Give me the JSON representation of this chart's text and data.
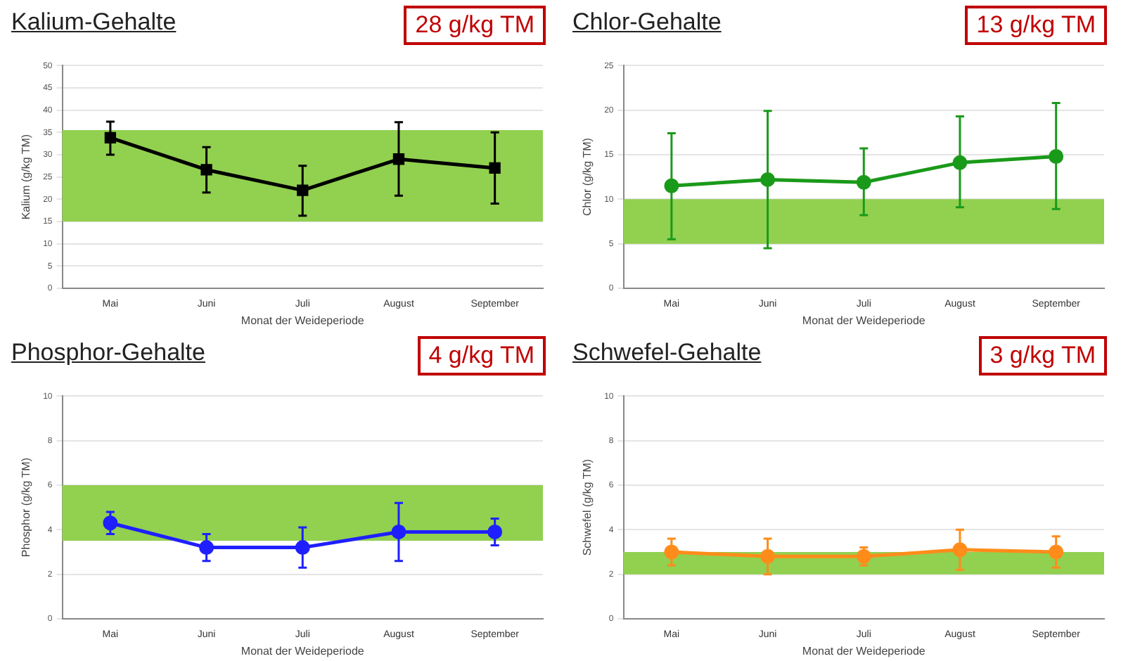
{
  "chart_data": [
    {
      "type": "line",
      "title": "Kalium-Gehalte",
      "annotations": [
        "28 g/kg TM"
      ],
      "xlabel": "Monat der Weideperiode",
      "ylabel": "Kalium (g/kg TM)",
      "categories": [
        "Mai",
        "Juni",
        "Juli",
        "August",
        "September"
      ],
      "series": [
        {
          "color": "#000000",
          "values": [
            33.8,
            26.6,
            22,
            29,
            27
          ],
          "errors": [
            [
              30,
              37.4
            ],
            [
              21.5,
              31.7
            ],
            [
              16.3,
              27.5
            ],
            [
              20.8,
              37.3
            ],
            [
              19,
              35
            ]
          ]
        }
      ],
      "ylim": [
        0,
        50
      ],
      "yticks": [
        0,
        5,
        10,
        15,
        20,
        25,
        30,
        35,
        40,
        45,
        50
      ],
      "grid": "y",
      "marker": "square",
      "bands": [
        {
          "axis": "y",
          "from": 15,
          "to": 35.5,
          "color": "#92d050"
        }
      ]
    },
    {
      "type": "line",
      "title": "Chlor-Gehalte",
      "annotations": [
        "13 g/kg TM"
      ],
      "xlabel": "Monat der Weideperiode",
      "ylabel": "Chlor (g/kg TM)",
      "categories": [
        "Mai",
        "Juni",
        "Juli",
        "August",
        "September"
      ],
      "series": [
        {
          "color": "#1a9a1a",
          "values": [
            11.5,
            12.2,
            11.9,
            14.1,
            14.8
          ],
          "errors": [
            [
              5.5,
              17.4
            ],
            [
              4.5,
              19.9
            ],
            [
              8.2,
              15.7
            ],
            [
              9.1,
              19.3
            ],
            [
              8.9,
              20.8
            ]
          ]
        }
      ],
      "ylim": [
        0,
        25
      ],
      "yticks": [
        0,
        5,
        10,
        15,
        20,
        25
      ],
      "grid": "y",
      "marker": "circle",
      "bands": [
        {
          "axis": "y",
          "from": 5,
          "to": 10,
          "color": "#92d050"
        }
      ]
    },
    {
      "type": "line",
      "title": "Phosphor-Gehalte",
      "annotations": [
        "4 g/kg TM"
      ],
      "xlabel": "Monat der Weideperiode",
      "ylabel": "Phosphor (g/kg TM)",
      "categories": [
        "Mai",
        "Juni",
        "Juli",
        "August",
        "September"
      ],
      "series": [
        {
          "color": "#1f1fff",
          "values": [
            4.3,
            3.2,
            3.2,
            3.9,
            3.9
          ],
          "errors": [
            [
              3.8,
              4.8
            ],
            [
              2.6,
              3.8
            ],
            [
              2.3,
              4.1
            ],
            [
              2.6,
              5.2
            ],
            [
              3.3,
              4.5
            ]
          ]
        }
      ],
      "ylim": [
        0,
        10
      ],
      "yticks": [
        0,
        2,
        4,
        6,
        8,
        10
      ],
      "grid": "y",
      "marker": "circle",
      "bands": [
        {
          "axis": "y",
          "from": 3.5,
          "to": 6,
          "color": "#92d050"
        }
      ]
    },
    {
      "type": "line",
      "title": "Schwefel-Gehalte",
      "annotations": [
        "3 g/kg TM"
      ],
      "xlabel": "Monat der Weideperiode",
      "ylabel": "Schwefel (g/kg TM)",
      "categories": [
        "Mai",
        "Juni",
        "Juli",
        "August",
        "September"
      ],
      "series": [
        {
          "color": "#ff8c1a",
          "values": [
            3.0,
            2.8,
            2.8,
            3.1,
            3.0
          ],
          "errors": [
            [
              2.4,
              3.6
            ],
            [
              2.0,
              3.6
            ],
            [
              2.4,
              3.2
            ],
            [
              2.2,
              4.0
            ],
            [
              2.3,
              3.7
            ]
          ]
        }
      ],
      "ylim": [
        0,
        10
      ],
      "yticks": [
        0,
        2,
        4,
        6,
        8,
        10
      ],
      "grid": "y",
      "marker": "circle",
      "bands": [
        {
          "axis": "y",
          "from": 2,
          "to": 3,
          "color": "#92d050"
        }
      ]
    }
  ]
}
